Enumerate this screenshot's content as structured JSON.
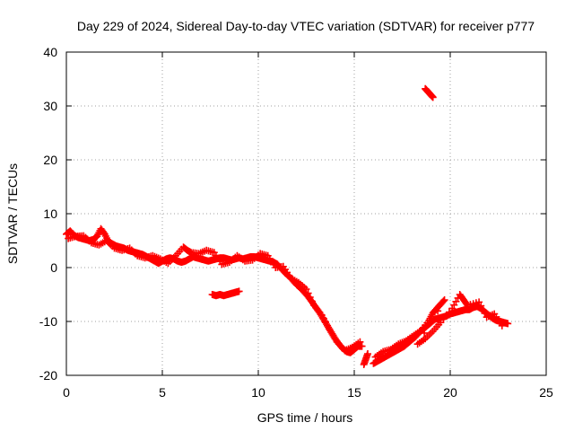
{
  "chart_data": {
    "type": "scatter",
    "title": "Day 229 of 2024, Sidereal Day-to-day VTEC variation (SDTVAR) for receiver p777",
    "xlabel": "GPS time / hours",
    "ylabel": "SDTVAR / TECUs",
    "xlim": [
      0,
      25
    ],
    "ylim": [
      -20,
      40
    ],
    "xticks": [
      0,
      5,
      10,
      15,
      20,
      25
    ],
    "yticks": [
      -20,
      -10,
      0,
      10,
      20,
      30,
      40
    ],
    "xtick_labels": [
      "0",
      "5",
      "10",
      "15",
      "20",
      "25"
    ],
    "ytick_labels": [
      "-20",
      "-10",
      "0",
      "10",
      "20",
      "30",
      "40"
    ],
    "grid": true,
    "marker": "plus",
    "series": [
      {
        "name": "SDTVAR",
        "color": "#ff0000",
        "segments": [
          [
            [
              0.0,
              6.2
            ],
            [
              0.2,
              6.8
            ],
            [
              0.4,
              6.0
            ],
            [
              0.6,
              5.6
            ],
            [
              0.8,
              5.4
            ],
            [
              1.0,
              5.2
            ],
            [
              1.2,
              5.0
            ],
            [
              1.4,
              5.2
            ],
            [
              1.6,
              5.8
            ],
            [
              1.8,
              7.2
            ],
            [
              2.0,
              6.2
            ],
            [
              2.2,
              4.8
            ],
            [
              2.4,
              4.4
            ],
            [
              2.6,
              4.0
            ],
            [
              2.8,
              3.8
            ],
            [
              3.0,
              3.6
            ],
            [
              3.2,
              3.2
            ],
            [
              3.4,
              3.0
            ],
            [
              3.6,
              2.8
            ],
            [
              3.8,
              2.6
            ],
            [
              4.0,
              2.4
            ],
            [
              4.2,
              2.0
            ],
            [
              4.4,
              1.6
            ],
            [
              4.6,
              1.2
            ],
            [
              4.8,
              0.8
            ],
            [
              5.0,
              1.2
            ],
            [
              5.2,
              1.6
            ],
            [
              5.4,
              1.8
            ],
            [
              5.6,
              1.6
            ],
            [
              5.8,
              1.2
            ],
            [
              6.0,
              1.0
            ],
            [
              6.2,
              1.2
            ],
            [
              6.4,
              1.6
            ],
            [
              6.6,
              2.0
            ],
            [
              6.8,
              1.8
            ],
            [
              7.0,
              1.6
            ],
            [
              7.2,
              1.4
            ],
            [
              7.4,
              1.2
            ],
            [
              7.6,
              1.4
            ],
            [
              7.8,
              1.6
            ],
            [
              8.0,
              1.8
            ],
            [
              8.2,
              1.8
            ],
            [
              8.4,
              1.6
            ],
            [
              8.6,
              1.4
            ],
            [
              8.8,
              1.6
            ],
            [
              9.0,
              1.8
            ],
            [
              9.2,
              1.6
            ],
            [
              9.4,
              1.8
            ],
            [
              9.6,
              2.0
            ],
            [
              9.8,
              2.0
            ],
            [
              10.0,
              1.8
            ],
            [
              10.2,
              1.6
            ],
            [
              10.4,
              1.4
            ],
            [
              10.6,
              1.2
            ],
            [
              10.8,
              1.0
            ],
            [
              11.0,
              0.6
            ],
            [
              11.2,
              -0.2
            ],
            [
              11.4,
              -1.0
            ],
            [
              11.6,
              -1.6
            ],
            [
              11.8,
              -2.4
            ],
            [
              12.0,
              -3.2
            ],
            [
              12.2,
              -3.8
            ],
            [
              12.4,
              -4.6
            ],
            [
              12.6,
              -5.4
            ],
            [
              12.8,
              -6.4
            ],
            [
              13.0,
              -7.4
            ],
            [
              13.2,
              -8.4
            ],
            [
              13.4,
              -9.6
            ],
            [
              13.6,
              -10.8
            ],
            [
              13.8,
              -12.0
            ],
            [
              14.0,
              -13.2
            ],
            [
              14.2,
              -14.2
            ],
            [
              14.4,
              -15.0
            ],
            [
              14.6,
              -15.6
            ],
            [
              14.8,
              -15.8
            ],
            [
              15.0,
              -15.2
            ],
            [
              15.2,
              -14.6
            ],
            [
              15.4,
              -14.6
            ]
          ],
          [
            [
              0.1,
              5.4
            ],
            [
              0.5,
              5.8
            ],
            [
              0.9,
              5.9
            ],
            [
              1.3,
              4.6
            ],
            [
              1.7,
              4.2
            ],
            [
              2.1,
              5.0
            ],
            [
              2.5,
              3.6
            ],
            [
              2.9,
              3.2
            ],
            [
              3.3,
              3.6
            ],
            [
              3.7,
              2.2
            ],
            [
              4.1,
              1.8
            ],
            [
              4.5,
              2.2
            ],
            [
              4.9,
              1.6
            ],
            [
              5.3,
              0.8
            ],
            [
              5.7,
              2.2
            ],
            [
              6.1,
              3.8
            ],
            [
              6.3,
              3.2
            ],
            [
              6.5,
              2.8
            ],
            [
              6.9,
              2.6
            ],
            [
              7.3,
              3.2
            ],
            [
              7.7,
              2.8
            ],
            [
              8.1,
              0.6
            ],
            [
              8.5,
              1.0
            ],
            [
              8.9,
              2.2
            ],
            [
              9.3,
              1.2
            ],
            [
              9.7,
              1.4
            ],
            [
              10.1,
              2.6
            ],
            [
              10.5,
              2.2
            ],
            [
              10.9,
              0.0
            ],
            [
              11.3,
              0.2
            ],
            [
              11.7,
              -2.0
            ],
            [
              12.1,
              -2.8
            ],
            [
              12.5,
              -4.0
            ],
            [
              12.9,
              -7.0
            ],
            [
              13.3,
              -8.8
            ],
            [
              13.7,
              -11.4
            ],
            [
              14.1,
              -13.8
            ],
            [
              14.5,
              -15.4
            ],
            [
              14.9,
              -14.8
            ],
            [
              15.3,
              -13.8
            ]
          ],
          [
            [
              7.6,
              -5.0
            ],
            [
              7.8,
              -5.2
            ],
            [
              8.0,
              -5.0
            ],
            [
              8.2,
              -5.2
            ],
            [
              8.4,
              -5.0
            ],
            [
              8.6,
              -4.8
            ],
            [
              8.8,
              -4.6
            ],
            [
              9.0,
              -4.4
            ]
          ],
          [
            [
              15.5,
              -18.0
            ],
            [
              15.6,
              -17.0
            ],
            [
              15.7,
              -16.0
            ]
          ],
          [
            [
              16.0,
              -17.8
            ],
            [
              16.2,
              -17.4
            ],
            [
              16.4,
              -17.0
            ],
            [
              16.6,
              -16.6
            ],
            [
              16.8,
              -16.2
            ],
            [
              17.0,
              -15.8
            ],
            [
              17.2,
              -15.4
            ],
            [
              17.4,
              -15.0
            ],
            [
              17.6,
              -14.6
            ],
            [
              17.8,
              -14.0
            ],
            [
              18.0,
              -13.4
            ],
            [
              18.2,
              -12.8
            ],
            [
              18.4,
              -12.0
            ],
            [
              18.6,
              -11.4
            ],
            [
              18.8,
              -10.8
            ],
            [
              19.0,
              -10.2
            ],
            [
              19.2,
              -9.6
            ],
            [
              19.4,
              -9.4
            ],
            [
              19.6,
              -9.2
            ],
            [
              19.8,
              -9.0
            ],
            [
              20.0,
              -8.6
            ],
            [
              20.2,
              -8.4
            ],
            [
              20.4,
              -8.2
            ],
            [
              20.6,
              -8.0
            ],
            [
              20.8,
              -7.8
            ],
            [
              21.0,
              -7.8
            ],
            [
              21.2,
              -7.4
            ],
            [
              21.4,
              -7.2
            ],
            [
              21.6,
              -7.6
            ],
            [
              21.8,
              -8.2
            ],
            [
              22.0,
              -8.8
            ],
            [
              22.2,
              -9.4
            ],
            [
              22.4,
              -9.8
            ],
            [
              22.6,
              -10.0
            ],
            [
              22.8,
              -10.2
            ],
            [
              23.0,
              -10.4
            ]
          ],
          [
            [
              16.1,
              -16.6
            ],
            [
              16.5,
              -15.6
            ],
            [
              16.9,
              -15.2
            ],
            [
              17.3,
              -14.2
            ],
            [
              17.7,
              -13.6
            ],
            [
              18.1,
              -12.6
            ],
            [
              18.5,
              -11.6
            ],
            [
              18.9,
              -9.8
            ],
            [
              19.1,
              -8.4
            ],
            [
              19.3,
              -7.6
            ],
            [
              19.5,
              -6.8
            ],
            [
              19.7,
              -6.0
            ],
            [
              18.3,
              -14.2
            ],
            [
              18.7,
              -13.2
            ],
            [
              19.1,
              -11.8
            ],
            [
              19.5,
              -10.2
            ],
            [
              20.1,
              -7.6
            ],
            [
              20.5,
              -5.0
            ],
            [
              20.7,
              -6.0
            ],
            [
              20.9,
              -7.0
            ],
            [
              21.5,
              -6.4
            ],
            [
              21.9,
              -9.2
            ],
            [
              22.3,
              -8.6
            ],
            [
              22.7,
              -10.8
            ]
          ],
          [
            [
              18.7,
              33.2
            ],
            [
              18.8,
              32.8
            ],
            [
              18.9,
              32.4
            ],
            [
              19.0,
              32.0
            ],
            [
              19.1,
              31.6
            ]
          ]
        ]
      }
    ]
  }
}
